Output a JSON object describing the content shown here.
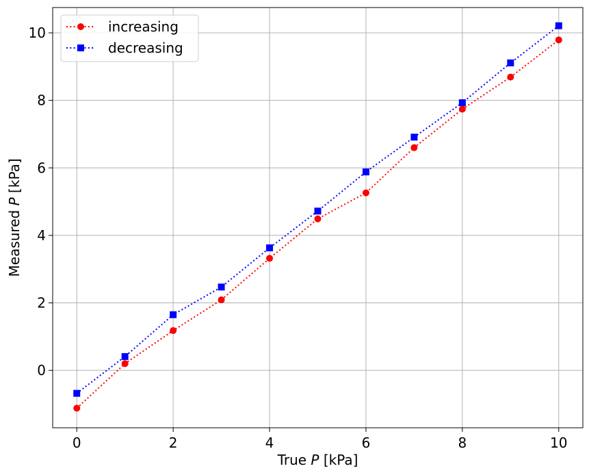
{
  "chart_data": {
    "type": "line",
    "title": "",
    "xlabel": {
      "prefix": "True ",
      "var": "P",
      "suffix": " [kPa]"
    },
    "ylabel": {
      "prefix": "Measured ",
      "var": "P",
      "suffix": " [kPa]"
    },
    "xlim": [
      -0.5,
      10.5
    ],
    "ylim": [
      -1.7,
      10.75
    ],
    "xticks": [
      0,
      2,
      4,
      6,
      8,
      10
    ],
    "yticks": [
      0,
      2,
      4,
      6,
      8,
      10
    ],
    "grid": true,
    "legend_position": "top-left",
    "x": [
      0,
      1,
      2,
      3,
      4,
      5,
      6,
      7,
      8,
      9,
      10
    ],
    "series": [
      {
        "name": "increasing",
        "color": "#ff0000",
        "marker": "circle",
        "linestyle": "dotted",
        "values": [
          -1.12,
          0.2,
          1.18,
          2.09,
          3.32,
          4.49,
          5.26,
          6.6,
          7.74,
          8.69,
          9.79
        ]
      },
      {
        "name": "decreasing",
        "color": "#0000ff",
        "marker": "square",
        "linestyle": "dotted",
        "values": [
          -0.68,
          0.41,
          1.65,
          2.47,
          3.63,
          4.72,
          5.88,
          6.91,
          7.93,
          9.11,
          10.21
        ]
      }
    ]
  }
}
